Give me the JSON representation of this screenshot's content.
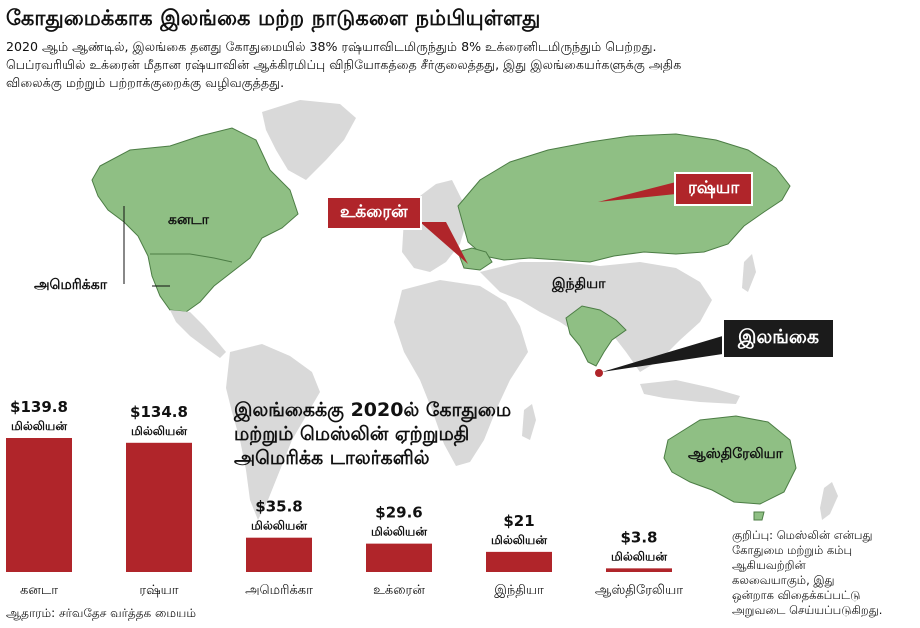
{
  "header": {
    "title": "கோதுமைக்காக இலங்கை மற்ற நாடுகளை நம்பியுள்ளது",
    "subtitle_lines": [
      "2020 ஆம் ஆண்டில், இலங்கை தனது கோதுமையில் 38% ரஷ்யாவிடமிருந்தும் 8% உக்ரைனிடமிருந்தும் பெற்றது.",
      "பெப்ரவரியில் உக்ரைன் மீதான ரஷ்யாவின் ஆக்கிரமிப்பு விநியோகத்தை சீர்குலைத்தது, இது இலங்கையர்களுக்கு அதிக",
      "விலைக்கு மற்றும் பற்றாக்குறைக்கு வழிவகுத்தது."
    ]
  },
  "map": {
    "labels": {
      "canada": "கனடா",
      "america": "அமெரிக்கா",
      "india": "இந்தியா",
      "australia": "ஆஸ்திரேலியா"
    },
    "callouts": {
      "ukraine": "உக்ரைன்",
      "russia": "ரஷ்யா",
      "sri_lanka": "இலங்கை"
    },
    "colors": {
      "land": "#d9d9d9",
      "highlight": "#8fbf84",
      "highlight_border": "#4c7d45",
      "accent": "#b0252a",
      "dark": "#1b1b1b"
    }
  },
  "chart_title_lines": [
    "இலங்கைக்கு 2020ல் கோதுமை",
    "மற்றும் மெஸ்லின் ஏற்றுமதி",
    "அமெரிக்க டாலர்களில்"
  ],
  "chart_data": {
    "type": "bar",
    "categories": [
      "கனடா",
      "ரஷ்யா",
      "அமெரிக்கா",
      "உக்ரைன்",
      "இந்தியா",
      "ஆஸ்திரேலியா"
    ],
    "values": [
      139.8,
      134.8,
      35.8,
      29.6,
      21,
      3.8
    ],
    "value_labels": [
      "$139.8",
      "$134.8",
      "$35.8",
      "$29.6",
      "$21",
      "$3.8"
    ],
    "unit_label": "மில்லியன்",
    "ylabel": "",
    "xlabel": "",
    "ylim": [
      0,
      139.8
    ],
    "bar_color": "#b0252a",
    "grid": false,
    "legend": "none"
  },
  "note_lines": [
    "குறிப்பு: மெஸ்லின் என்பது",
    "கோதுமை மற்றும் கம்பு",
    "ஆகியவற்றின்",
    "கலவையாகும், இது",
    "ஒன்றாக விதைக்கப்பட்டு",
    "அறுவடை செய்யப்படுகிறது."
  ],
  "source": "ஆதாரம்: சர்வதேச வர்த்தக மையம்"
}
